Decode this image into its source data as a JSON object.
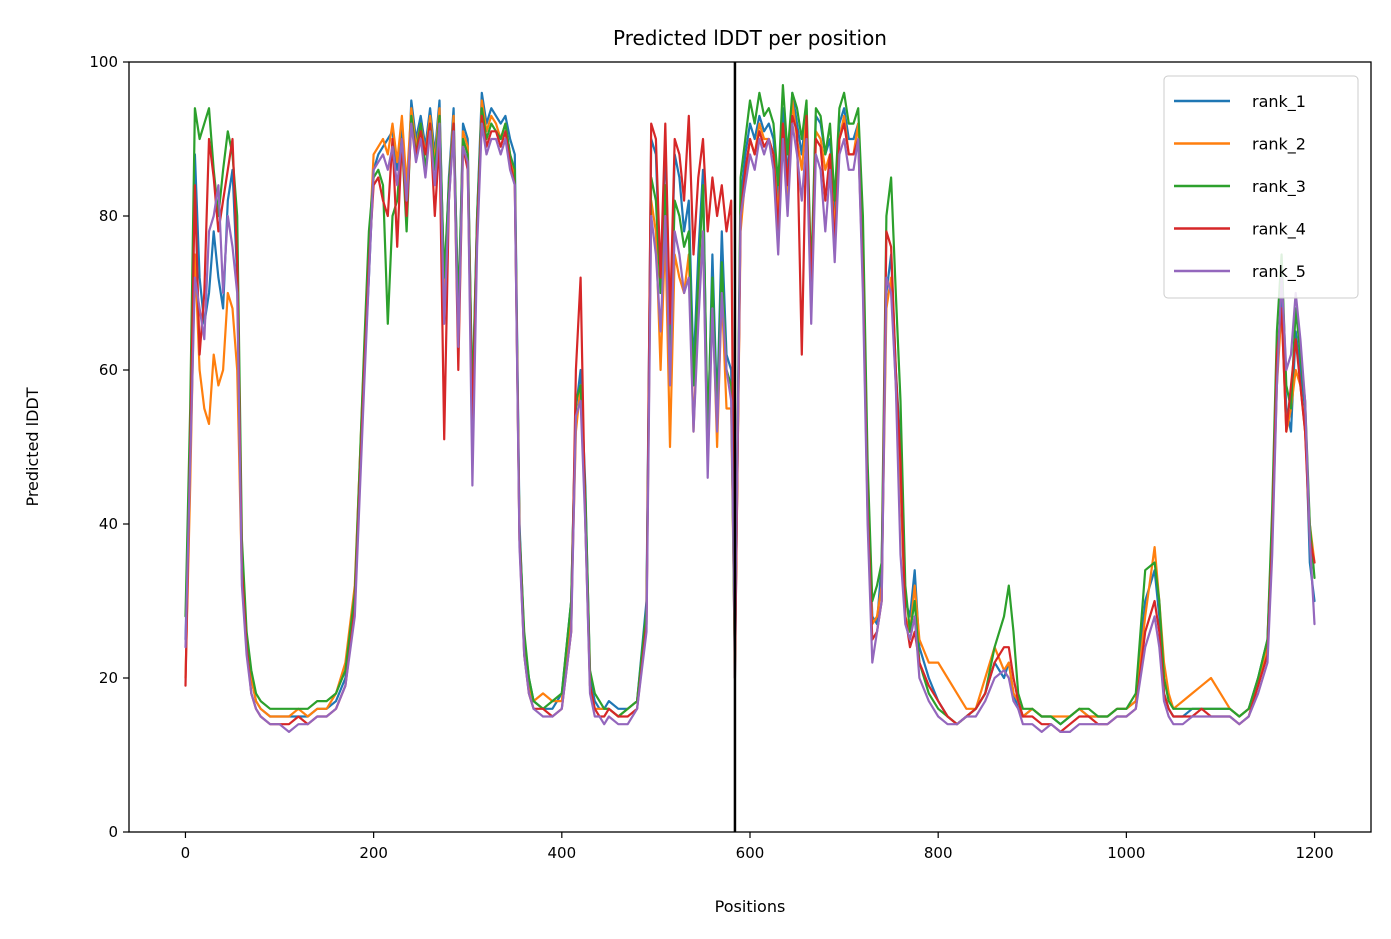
{
  "chart_data": {
    "type": "line",
    "title": "Predicted lDDT per position",
    "xlabel": "Positions",
    "ylabel": "Predicted lDDT",
    "xlim": [
      -60,
      1260
    ],
    "ylim": [
      0,
      100
    ],
    "xticks": [
      0,
      200,
      400,
      600,
      800,
      1000,
      1200
    ],
    "yticks": [
      0,
      20,
      40,
      60,
      80,
      100
    ],
    "grid": false,
    "legend_position": "top-right",
    "vline": 584,
    "x": [
      0,
      5,
      10,
      15,
      20,
      25,
      30,
      35,
      40,
      45,
      50,
      55,
      60,
      65,
      70,
      75,
      80,
      90,
      100,
      110,
      120,
      130,
      140,
      150,
      160,
      170,
      180,
      190,
      195,
      200,
      205,
      210,
      215,
      220,
      225,
      230,
      235,
      240,
      245,
      250,
      255,
      260,
      265,
      270,
      275,
      280,
      285,
      290,
      295,
      300,
      305,
      310,
      315,
      320,
      325,
      330,
      335,
      340,
      345,
      350,
      355,
      360,
      365,
      370,
      380,
      390,
      400,
      410,
      415,
      420,
      425,
      430,
      435,
      440,
      445,
      450,
      460,
      470,
      480,
      490,
      495,
      500,
      505,
      510,
      515,
      520,
      525,
      530,
      535,
      540,
      545,
      550,
      555,
      560,
      565,
      570,
      575,
      580,
      584,
      590,
      595,
      600,
      605,
      610,
      615,
      620,
      625,
      630,
      635,
      640,
      645,
      650,
      655,
      660,
      665,
      670,
      675,
      680,
      685,
      690,
      695,
      700,
      705,
      710,
      715,
      720,
      725,
      730,
      735,
      740,
      745,
      750,
      755,
      760,
      765,
      770,
      775,
      780,
      790,
      800,
      810,
      820,
      830,
      840,
      850,
      860,
      870,
      875,
      880,
      885,
      890,
      900,
      910,
      920,
      930,
      940,
      950,
      960,
      970,
      980,
      990,
      1000,
      1010,
      1020,
      1030,
      1035,
      1040,
      1045,
      1050,
      1060,
      1070,
      1080,
      1090,
      1100,
      1110,
      1120,
      1130,
      1140,
      1150,
      1155,
      1160,
      1165,
      1170,
      1175,
      1180,
      1185,
      1190,
      1195,
      1200
    ],
    "series": [
      {
        "name": "rank_1",
        "color": "#1f77b4",
        "values": [
          25,
          50,
          88,
          72,
          66,
          70,
          78,
          72,
          68,
          82,
          86,
          72,
          35,
          25,
          20,
          17,
          16,
          15,
          15,
          15,
          15,
          15,
          16,
          16,
          17,
          20,
          30,
          60,
          72,
          86,
          88,
          89,
          90,
          91,
          86,
          92,
          80,
          95,
          90,
          93,
          89,
          94,
          88,
          95,
          70,
          85,
          94,
          66,
          92,
          90,
          55,
          80,
          96,
          92,
          94,
          93,
          92,
          93,
          90,
          88,
          40,
          25,
          20,
          17,
          16,
          16,
          18,
          30,
          55,
          60,
          45,
          20,
          17,
          16,
          16,
          17,
          16,
          16,
          17,
          30,
          90,
          88,
          70,
          90,
          65,
          88,
          85,
          78,
          82,
          60,
          75,
          86,
          50,
          75,
          55,
          78,
          62,
          60,
          20,
          82,
          88,
          92,
          90,
          93,
          91,
          92,
          90,
          82,
          94,
          85,
          96,
          92,
          88,
          94,
          70,
          93,
          92,
          88,
          90,
          80,
          92,
          94,
          90,
          90,
          92,
          75,
          45,
          28,
          27,
          35,
          70,
          75,
          60,
          50,
          30,
          28,
          34,
          24,
          20,
          17,
          15,
          14,
          15,
          16,
          18,
          22,
          20,
          22,
          18,
          16,
          15,
          16,
          15,
          15,
          14,
          15,
          16,
          15,
          15,
          15,
          16,
          16,
          17,
          30,
          34,
          28,
          18,
          16,
          15,
          15,
          16,
          16,
          16,
          16,
          16,
          15,
          16,
          20,
          25,
          40,
          60,
          70,
          55,
          52,
          65,
          60,
          55,
          35,
          30
        ]
      },
      {
        "name": "rank_2",
        "color": "#ff7f0e",
        "values": [
          20,
          45,
          75,
          60,
          55,
          53,
          62,
          58,
          60,
          70,
          68,
          60,
          33,
          24,
          20,
          17,
          16,
          15,
          15,
          15,
          16,
          15,
          16,
          16,
          18,
          22,
          32,
          62,
          75,
          88,
          89,
          90,
          88,
          92,
          87,
          93,
          84,
          94,
          89,
          92,
          88,
          93,
          87,
          94,
          68,
          84,
          93,
          64,
          91,
          89,
          54,
          78,
          95,
          91,
          93,
          92,
          90,
          92,
          88,
          85,
          38,
          24,
          19,
          17,
          18,
          17,
          17,
          28,
          52,
          58,
          42,
          19,
          16,
          16,
          16,
          16,
          15,
          16,
          17,
          28,
          82,
          78,
          60,
          78,
          50,
          75,
          72,
          70,
          75,
          52,
          68,
          78,
          48,
          70,
          50,
          70,
          55,
          55,
          22,
          78,
          85,
          90,
          88,
          92,
          90,
          90,
          88,
          80,
          92,
          82,
          95,
          90,
          86,
          93,
          68,
          91,
          90,
          86,
          88,
          78,
          90,
          93,
          88,
          88,
          92,
          75,
          42,
          27,
          28,
          32,
          68,
          72,
          58,
          45,
          28,
          26,
          32,
          25,
          22,
          22,
          20,
          18,
          16,
          16,
          20,
          24,
          21,
          22,
          18,
          17,
          15,
          16,
          15,
          15,
          15,
          15,
          16,
          15,
          15,
          15,
          16,
          16,
          17,
          28,
          37,
          30,
          22,
          18,
          16,
          17,
          18,
          19,
          20,
          18,
          16,
          15,
          16,
          19,
          24,
          38,
          58,
          68,
          52,
          55,
          60,
          58,
          52,
          40,
          35
        ]
      },
      {
        "name": "rank_3",
        "color": "#2ca02c",
        "values": [
          28,
          55,
          94,
          90,
          92,
          94,
          86,
          80,
          86,
          91,
          88,
          80,
          38,
          26,
          21,
          18,
          17,
          16,
          16,
          16,
          16,
          16,
          17,
          17,
          18,
          21,
          31,
          63,
          78,
          85,
          86,
          84,
          66,
          80,
          82,
          90,
          78,
          93,
          88,
          92,
          86,
          92,
          86,
          93,
          72,
          84,
          92,
          68,
          90,
          88,
          56,
          80,
          94,
          90,
          92,
          91,
          90,
          92,
          88,
          86,
          39,
          26,
          20,
          17,
          16,
          17,
          18,
          30,
          56,
          58,
          44,
          21,
          18,
          17,
          16,
          16,
          15,
          16,
          17,
          29,
          85,
          82,
          70,
          84,
          60,
          82,
          80,
          76,
          78,
          58,
          72,
          84,
          52,
          72,
          54,
          74,
          60,
          58,
          22,
          85,
          90,
          95,
          92,
          96,
          93,
          94,
          92,
          84,
          97,
          88,
          96,
          94,
          90,
          95,
          72,
          94,
          93,
          88,
          92,
          82,
          94,
          96,
          92,
          92,
          94,
          80,
          48,
          30,
          32,
          35,
          80,
          85,
          70,
          56,
          32,
          26,
          30,
          22,
          18,
          16,
          15,
          14,
          15,
          16,
          18,
          24,
          28,
          32,
          26,
          18,
          16,
          16,
          15,
          15,
          14,
          15,
          16,
          16,
          15,
          15,
          16,
          16,
          18,
          34,
          35,
          30,
          20,
          17,
          16,
          16,
          16,
          16,
          16,
          16,
          16,
          15,
          16,
          20,
          25,
          42,
          65,
          75,
          58,
          55,
          68,
          62,
          56,
          40,
          33
        ]
      },
      {
        "name": "rank_4",
        "color": "#d62728",
        "values": [
          19,
          50,
          84,
          62,
          70,
          90,
          85,
          78,
          82,
          86,
          90,
          74,
          34,
          24,
          18,
          16,
          15,
          14,
          14,
          14,
          15,
          14,
          15,
          15,
          16,
          19,
          29,
          60,
          74,
          84,
          85,
          82,
          80,
          90,
          76,
          90,
          80,
          92,
          88,
          91,
          88,
          92,
          80,
          90,
          51,
          82,
          92,
          60,
          89,
          86,
          52,
          78,
          93,
          89,
          91,
          91,
          89,
          91,
          87,
          84,
          38,
          23,
          18,
          16,
          16,
          15,
          16,
          26,
          60,
          72,
          40,
          19,
          16,
          15,
          15,
          16,
          15,
          15,
          16,
          27,
          92,
          90,
          72,
          92,
          66,
          90,
          88,
          82,
          93,
          75,
          85,
          90,
          78,
          85,
          80,
          84,
          78,
          82,
          20,
          80,
          86,
          90,
          88,
          91,
          89,
          90,
          88,
          78,
          92,
          84,
          93,
          91,
          62,
          93,
          70,
          90,
          89,
          82,
          88,
          76,
          90,
          92,
          88,
          88,
          90,
          72,
          42,
          25,
          26,
          30,
          78,
          76,
          60,
          48,
          28,
          24,
          26,
          22,
          19,
          17,
          15,
          14,
          15,
          16,
          18,
          22,
          24,
          24,
          20,
          17,
          15,
          15,
          14,
          14,
          13,
          14,
          15,
          15,
          14,
          14,
          15,
          15,
          16,
          26,
          30,
          26,
          18,
          16,
          15,
          15,
          15,
          16,
          15,
          15,
          15,
          14,
          15,
          19,
          23,
          38,
          62,
          68,
          52,
          58,
          64,
          58,
          52,
          38,
          35
        ]
      },
      {
        "name": "rank_5",
        "color": "#9467bd",
        "values": [
          24,
          48,
          72,
          68,
          64,
          78,
          80,
          84,
          70,
          80,
          76,
          70,
          32,
          23,
          18,
          16,
          15,
          14,
          14,
          13,
          14,
          14,
          15,
          15,
          16,
          19,
          28,
          58,
          72,
          86,
          87,
          88,
          86,
          89,
          84,
          90,
          82,
          92,
          87,
          90,
          85,
          91,
          84,
          92,
          66,
          82,
          91,
          63,
          89,
          87,
          45,
          76,
          92,
          88,
          90,
          90,
          88,
          90,
          86,
          84,
          37,
          23,
          18,
          16,
          15,
          15,
          16,
          26,
          54,
          56,
          40,
          18,
          15,
          15,
          14,
          15,
          14,
          14,
          16,
          26,
          80,
          75,
          65,
          80,
          58,
          78,
          75,
          70,
          72,
          52,
          66,
          78,
          46,
          68,
          52,
          70,
          60,
          56,
          25,
          80,
          84,
          88,
          86,
          90,
          88,
          90,
          86,
          75,
          90,
          80,
          92,
          88,
          82,
          90,
          66,
          88,
          86,
          78,
          86,
          74,
          88,
          90,
          86,
          86,
          90,
          70,
          40,
          22,
          26,
          30,
          72,
          70,
          58,
          36,
          27,
          25,
          28,
          20,
          17,
          15,
          14,
          14,
          15,
          15,
          17,
          20,
          21,
          20,
          17,
          16,
          14,
          14,
          13,
          14,
          13,
          13,
          14,
          14,
          14,
          14,
          15,
          15,
          16,
          24,
          28,
          24,
          17,
          15,
          14,
          14,
          15,
          15,
          15,
          15,
          15,
          14,
          15,
          18,
          22,
          36,
          58,
          72,
          60,
          62,
          70,
          64,
          56,
          38,
          27
        ]
      }
    ]
  }
}
